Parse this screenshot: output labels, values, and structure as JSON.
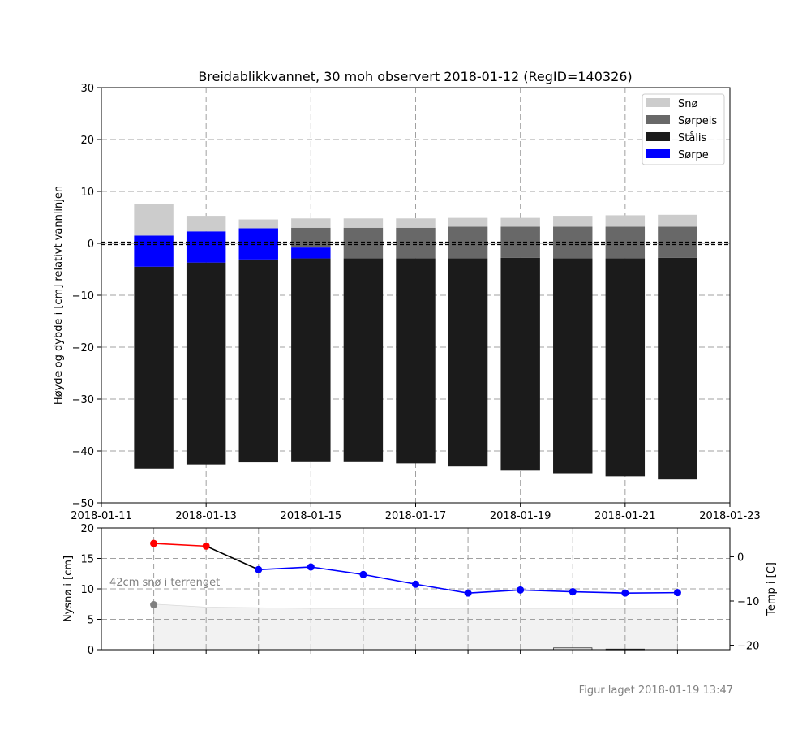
{
  "chart_data": [
    {
      "type": "bar",
      "title": "Breidablikkvannet, 30 moh observert 2018-01-12 (RegID=140326)",
      "ylabel": "Høyde og dybde i [cm] relativt vannlinjen",
      "ylim": [
        -50,
        30
      ],
      "yticks": [
        -50,
        -40,
        -30,
        -20,
        -10,
        0,
        10,
        20,
        30
      ],
      "xlim": [
        "2018-01-11",
        "2018-01-23"
      ],
      "xticks": [
        "2018-01-11",
        "2018-01-13",
        "2018-01-15",
        "2018-01-17",
        "2018-01-19",
        "2018-01-21",
        "2018-01-23"
      ],
      "grid": true,
      "legend_position": "top-right",
      "waterline": 0,
      "legend": [
        {
          "name": "Snø",
          "color": "#cccccc"
        },
        {
          "name": "Sørpeis",
          "color": "#686868"
        },
        {
          "name": "Stålis",
          "color": "#1b1b1b"
        },
        {
          "name": "Sørpe",
          "color": "#0000ff"
        }
      ],
      "bars": [
        {
          "date": "2018-01-12",
          "layers": [
            {
              "type": "Stålis",
              "from": -43.4,
              "to": -4.5
            },
            {
              "type": "Sørpe",
              "from": -4.5,
              "to": 1.5
            },
            {
              "type": "Snø",
              "from": 1.5,
              "to": 7.6
            }
          ]
        },
        {
          "date": "2018-01-13",
          "layers": [
            {
              "type": "Stålis",
              "from": -42.6,
              "to": -3.7
            },
            {
              "type": "Sørpe",
              "from": -3.7,
              "to": 2.3
            },
            {
              "type": "Snø",
              "from": 2.3,
              "to": 5.3
            }
          ]
        },
        {
          "date": "2018-01-14",
          "layers": [
            {
              "type": "Stålis",
              "from": -42.2,
              "to": -3.1
            },
            {
              "type": "Sørpe",
              "from": -3.1,
              "to": 2.9
            },
            {
              "type": "Snø",
              "from": 2.9,
              "to": 4.6
            }
          ]
        },
        {
          "date": "2018-01-15",
          "layers": [
            {
              "type": "Stålis",
              "from": -42.0,
              "to": -2.9
            },
            {
              "type": "Sørpe",
              "from": -2.9,
              "to": -0.8
            },
            {
              "type": "Sørpeis",
              "from": -0.8,
              "to": 3.0
            },
            {
              "type": "Snø",
              "from": 3.0,
              "to": 4.8
            }
          ]
        },
        {
          "date": "2018-01-16",
          "layers": [
            {
              "type": "Stålis",
              "from": -42.0,
              "to": -2.9
            },
            {
              "type": "Sørpeis",
              "from": -2.9,
              "to": 3.0
            },
            {
              "type": "Snø",
              "from": 3.0,
              "to": 4.8
            }
          ]
        },
        {
          "date": "2018-01-17",
          "layers": [
            {
              "type": "Stålis",
              "from": -42.4,
              "to": -2.9
            },
            {
              "type": "Sørpeis",
              "from": -2.9,
              "to": 3.0
            },
            {
              "type": "Snø",
              "from": 3.0,
              "to": 4.8
            }
          ]
        },
        {
          "date": "2018-01-18",
          "layers": [
            {
              "type": "Stålis",
              "from": -43.0,
              "to": -2.9
            },
            {
              "type": "Sørpeis",
              "from": -2.9,
              "to": 3.2
            },
            {
              "type": "Snø",
              "from": 3.2,
              "to": 4.9
            }
          ]
        },
        {
          "date": "2018-01-19",
          "layers": [
            {
              "type": "Stålis",
              "from": -43.8,
              "to": -2.8
            },
            {
              "type": "Sørpeis",
              "from": -2.8,
              "to": 3.2
            },
            {
              "type": "Snø",
              "from": 3.2,
              "to": 4.9
            }
          ]
        },
        {
          "date": "2018-01-20",
          "layers": [
            {
              "type": "Stålis",
              "from": -44.3,
              "to": -2.9
            },
            {
              "type": "Sørpeis",
              "from": -2.9,
              "to": 3.2
            },
            {
              "type": "Snø",
              "from": 3.2,
              "to": 5.3
            }
          ]
        },
        {
          "date": "2018-01-21",
          "layers": [
            {
              "type": "Stålis",
              "from": -44.9,
              "to": -2.9
            },
            {
              "type": "Sørpeis",
              "from": -2.9,
              "to": 3.2
            },
            {
              "type": "Snø",
              "from": 3.2,
              "to": 5.4
            }
          ]
        },
        {
          "date": "2018-01-22",
          "layers": [
            {
              "type": "Stålis",
              "from": -45.5,
              "to": -2.8
            },
            {
              "type": "Sørpeis",
              "from": -2.8,
              "to": 3.2
            },
            {
              "type": "Snø",
              "from": 3.2,
              "to": 5.5
            }
          ]
        }
      ]
    },
    {
      "type": "line",
      "ylabel": "Nysnø i [cm]",
      "ylim": [
        0,
        20
      ],
      "yticks": [
        0,
        5,
        10,
        15,
        20
      ],
      "y2label": "Temp i [C]",
      "y2lim": [
        -21,
        6.5
      ],
      "y2ticks": [
        -20,
        -10,
        0
      ],
      "xlim": [
        "2018-01-11",
        "2018-01-23"
      ],
      "grid": true,
      "annotation": "42cm snø i terrenget",
      "snow_area": {
        "x": [
          "2018-01-12",
          "2018-01-13",
          "2018-01-14",
          "2018-01-15",
          "2018-01-16",
          "2018-01-17",
          "2018-01-18",
          "2018-01-19",
          "2018-01-20",
          "2018-01-21",
          "2018-01-22"
        ],
        "values": [
          7.5,
          7.0,
          6.9,
          6.8,
          6.8,
          6.8,
          6.8,
          6.8,
          6.8,
          6.8,
          6.8
        ],
        "color": "#f2f2f2"
      },
      "snow_point": {
        "x": "2018-01-12",
        "value": 7.4,
        "color": "#808080"
      },
      "new_snow_bars": [
        {
          "x": "2018-01-20",
          "value": 0.3
        },
        {
          "x": "2018-01-21",
          "value": 0.1
        }
      ],
      "temperature": {
        "name": "Temp i [C]",
        "x": [
          "2018-01-12",
          "2018-01-13",
          "2018-01-14",
          "2018-01-15",
          "2018-01-16",
          "2018-01-17",
          "2018-01-18",
          "2018-01-19",
          "2018-01-20",
          "2018-01-21",
          "2018-01-22"
        ],
        "values": [
          3.0,
          2.4,
          -2.9,
          -2.3,
          -4.0,
          -6.2,
          -8.2,
          -7.5,
          -7.9,
          -8.2,
          -8.1
        ],
        "colors": [
          "#ff0000",
          "#ff0000",
          "#0000ff",
          "#0000ff",
          "#0000ff",
          "#0000ff",
          "#0000ff",
          "#0000ff",
          "#0000ff",
          "#0000ff",
          "#0000ff"
        ]
      }
    }
  ],
  "footer": {
    "note": "Figur laget 2018-01-19 13:47"
  }
}
